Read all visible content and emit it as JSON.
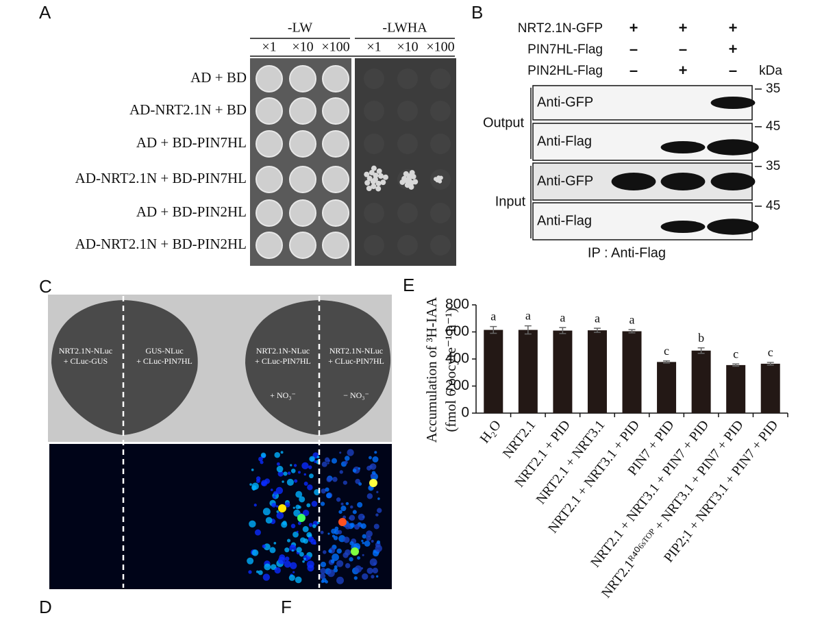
{
  "panel_letters": {
    "A": "A",
    "B": "B",
    "C": "C",
    "D": "D",
    "E": "E",
    "F": "F"
  },
  "panel_a": {
    "media": [
      "-LW",
      "-LWHA"
    ],
    "dilutions": [
      "×1",
      "×10",
      "×100"
    ],
    "rows": [
      "AD + BD",
      "AD-NRT2.1N + BD",
      "AD + BD-PIN7HL",
      "AD-NRT2.1N + BD-PIN7HL",
      "AD + BD-PIN2HL",
      "AD-NRT2.1N + BD-PIN2HL"
    ]
  },
  "panel_b": {
    "constructs": [
      {
        "name": "NRT2.1N-GFP",
        "signs": [
          "+",
          "+",
          "+"
        ]
      },
      {
        "name": "PIN7HL-Flag",
        "signs": [
          "–",
          "–",
          "+"
        ]
      },
      {
        "name": "PIN2HL-Flag",
        "signs": [
          "–",
          "+",
          "–"
        ]
      }
    ],
    "unit": "kDa",
    "groups": [
      "Output",
      "Input"
    ],
    "blots": [
      {
        "antibody": "Anti-GFP",
        "marker": "35"
      },
      {
        "antibody": "Anti-Flag",
        "marker": "45"
      },
      {
        "antibody": "Anti-GFP",
        "marker": "35"
      },
      {
        "antibody": "Anti-Flag",
        "marker": "45"
      }
    ],
    "footer": "IP : Anti-Flag"
  },
  "panel_c": {
    "sections": [
      [
        "NRT2.1N-NLuc",
        "+ CLuc-GUS"
      ],
      [
        "GUS-NLuc",
        "+ CLuc-PIN7HL"
      ],
      [
        "NRT2.1N-NLuc",
        "+ CLuc-PIN7HL"
      ],
      [
        "NRT2.1N-NLuc",
        "+ CLuc-PIN7HL"
      ]
    ],
    "treatments": [
      "+ NO₃⁻",
      "− NO₃⁻"
    ]
  },
  "chart_data": {
    "type": "bar",
    "y_label": [
      "Accumulation of ³H-IAA",
      "(fmol 6 oocyte⁻¹ h⁻¹)"
    ],
    "categories": [
      "H₂O",
      "NRT2.1",
      "NRT2.1 + PID",
      "NRT2.1 + NRT3.1",
      "NRT2.1 + NRT3.1 + PID",
      "PIN7 + PID",
      "NRT2.1 + NRT3.1 + PIN7 + PID",
      "NRT2.1ᴿ⁴⁰⁶ˢᵀᴼᴾ + NRT3.1 + PIN7 + PID",
      "PIP2;1 + NRT3.1 + PIN7 + PID"
    ],
    "values": [
      615,
      615,
      610,
      612,
      605,
      378,
      462,
      355,
      365
    ],
    "errors": [
      25,
      30,
      22,
      15,
      12,
      8,
      20,
      8,
      10
    ],
    "annotations": [
      "a",
      "a",
      "a",
      "a",
      "a",
      "c",
      "b",
      "c",
      "c"
    ],
    "color": "#231815",
    "ylim": [
      0,
      800
    ],
    "yticks": [
      0,
      200,
      400,
      600,
      800
    ]
  }
}
